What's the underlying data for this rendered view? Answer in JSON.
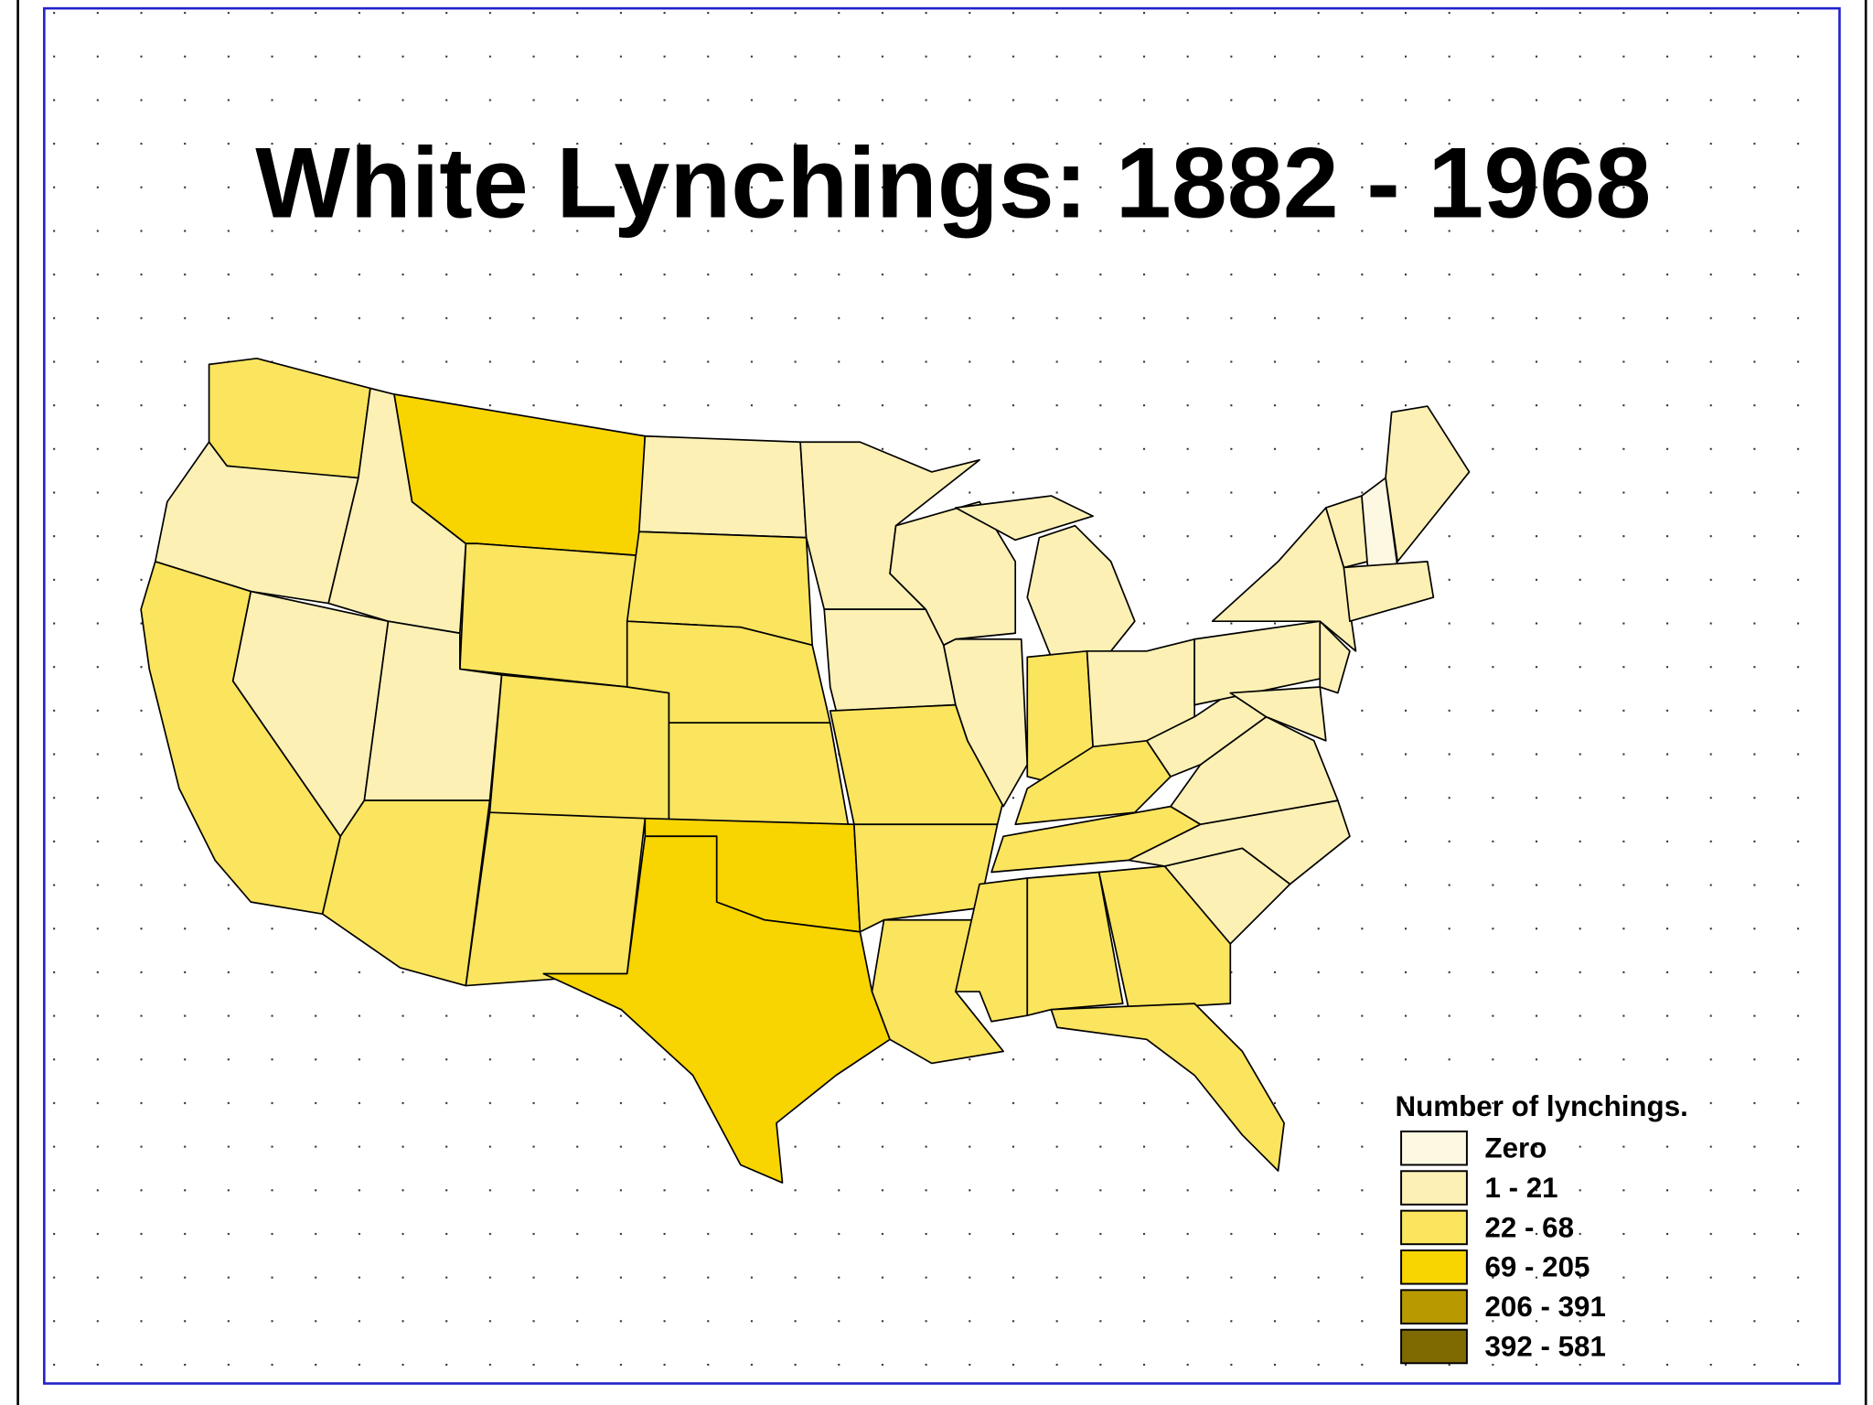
{
  "title": "White Lynchings: 1882 - 1968",
  "legend": {
    "title": "Number of lynchings.",
    "items": [
      {
        "label": "Zero",
        "color": "#fdf8e2"
      },
      {
        "label": "1 - 21",
        "color": "#fcf0b4"
      },
      {
        "label": "22 - 68",
        "color": "#fbe45e"
      },
      {
        "label": "69 - 205",
        "color": "#f8d400"
      },
      {
        "label": "206 - 391",
        "color": "#b89a00"
      },
      {
        "label": "392 - 581",
        "color": "#7e6a00"
      }
    ]
  }
}
